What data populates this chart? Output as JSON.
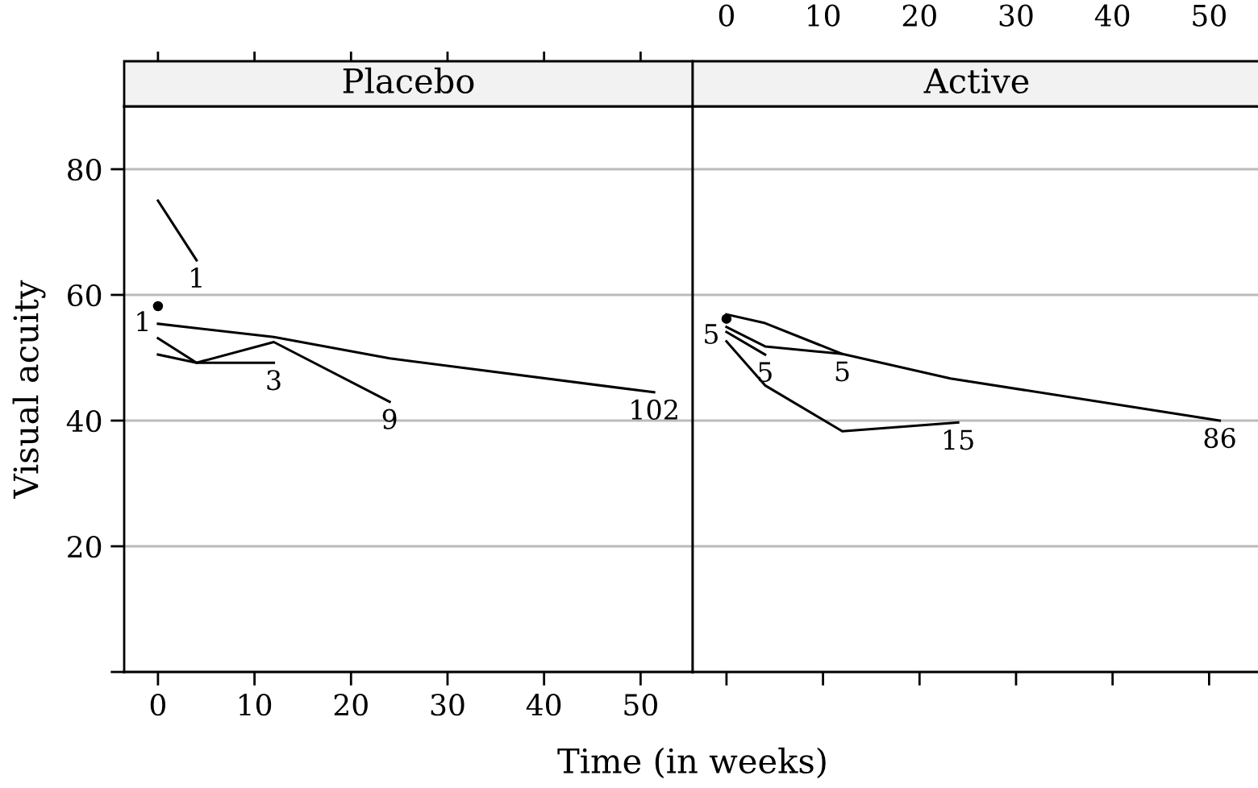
{
  "chart_data": [
    {
      "type": "line",
      "title": "Placebo",
      "xlabel": "Time (in weeks)",
      "ylabel": "Visual acuity",
      "xlim": [
        -3.5,
        55.4
      ],
      "xticks": [
        0,
        10,
        20,
        30,
        40,
        50
      ],
      "ylim": [
        0,
        90
      ],
      "yticks": [
        {
          "value": 0,
          "label": null
        },
        20,
        40,
        60,
        80
      ],
      "grid": "y",
      "line_style": "solid",
      "series": [
        {
          "color": "#000000",
          "x": [
            0,
            4
          ],
          "values": [
            75.0,
            65.5
          ]
        },
        {
          "color": "#000000",
          "x": [
            0,
            12,
            24,
            51.4
          ],
          "values": [
            55.4,
            53.3,
            49.9,
            44.5
          ]
        },
        {
          "color": "#000000",
          "x": [
            0,
            4,
            12,
            24
          ],
          "values": [
            53.1,
            49.2,
            52.5,
            43.0
          ]
        },
        {
          "color": "#000000",
          "x": [
            0,
            4,
            12
          ],
          "values": [
            50.5,
            49.2,
            49.2
          ]
        },
        {
          "type": "scatter",
          "marker": "circle",
          "color": "#000000",
          "x": [
            0
          ],
          "values": [
            58.2
          ]
        }
      ],
      "annotations": [
        {
          "text": "1",
          "x": 4,
          "y": 65.5
        },
        {
          "text": "102",
          "x": 51.4,
          "y": 44.5
        },
        {
          "text": "9",
          "x": 24,
          "y": 43.0
        },
        {
          "text": "3",
          "x": 12,
          "y": 49.2
        },
        {
          "text": "1",
          "x": 0,
          "y": 58.2
        }
      ]
    },
    {
      "type": "line",
      "title": "Active",
      "tick_labels": "x",
      "xlim": [
        -3.5,
        55.4
      ],
      "xticks": [
        0,
        10,
        20,
        30,
        40,
        50
      ],
      "ylim": [
        0,
        90
      ],
      "yticks": [
        20,
        40,
        60,
        80
      ],
      "grid": "y",
      "line_style": "solid",
      "series": [
        {
          "color": "#000000",
          "x": [
            0,
            4,
            12
          ],
          "values": [
            56.9,
            55.5,
            50.6
          ]
        },
        {
          "color": "#000000",
          "x": [
            0,
            4,
            12,
            23.2,
            51.1
          ],
          "values": [
            54.9,
            51.8,
            50.6,
            46.7,
            40.0
          ]
        },
        {
          "color": "#000000",
          "x": [
            0,
            4
          ],
          "values": [
            54.1,
            50.5
          ]
        },
        {
          "color": "#000000",
          "x": [
            0,
            4,
            12,
            24
          ],
          "values": [
            52.6,
            45.6,
            38.3,
            39.7
          ]
        },
        {
          "type": "scatter",
          "marker": "circle",
          "color": "#000000",
          "x": [
            0
          ],
          "values": [
            56.2
          ]
        }
      ],
      "annotations": [
        {
          "text": "5",
          "x": 12,
          "y": 50.6
        },
        {
          "text": "86",
          "x": 51.1,
          "y": 40.0
        },
        {
          "text": "5",
          "x": 4,
          "y": 50.5
        },
        {
          "text": "15",
          "x": 24,
          "y": 39.7
        },
        {
          "text": "5",
          "x": 0,
          "y": 56.2
        }
      ]
    }
  ]
}
